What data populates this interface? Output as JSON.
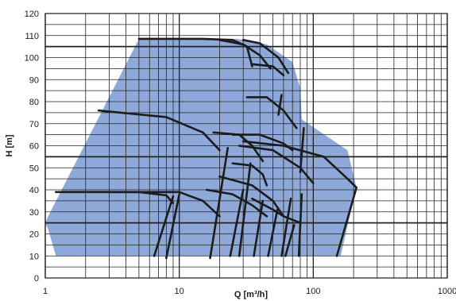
{
  "chart_data": {
    "type": "area",
    "xlabel": "Q [m³/h]",
    "ylabel": "H [m]",
    "x_scale": "log",
    "xlim": [
      1,
      1000
    ],
    "ylim": [
      0,
      120
    ],
    "x_ticks": [
      "1",
      "10",
      "100",
      "1000"
    ],
    "y_ticks": [
      "0",
      "10",
      "20",
      "30",
      "40",
      "50",
      "60",
      "70",
      "80",
      "90",
      "100",
      "110",
      "120"
    ],
    "grid": true,
    "emphasized_y_lines": [
      25,
      55,
      105
    ],
    "colors": {
      "envelope": "#8ea9d9",
      "curves": "#1c1c1c",
      "grid": "#222222"
    },
    "envelope": [
      [
        1,
        25
      ],
      [
        1.05,
        28
      ],
      [
        5,
        108.5
      ],
      [
        27,
        108.5
      ],
      [
        45,
        106
      ],
      [
        70,
        98
      ],
      [
        80,
        86
      ],
      [
        82,
        72
      ],
      [
        180,
        58
      ],
      [
        210,
        41
      ],
      [
        160,
        10
      ],
      [
        1.2,
        10
      ],
      [
        1.05,
        22
      ]
    ],
    "curves": [
      {
        "points": [
          [
            5,
            108.5
          ],
          [
            15,
            108.5
          ],
          [
            25,
            108
          ],
          [
            32,
            105
          ],
          [
            35,
            96
          ]
        ]
      },
      {
        "points": [
          [
            30,
            108
          ],
          [
            40,
            106.5
          ],
          [
            55,
            100
          ],
          [
            65,
            93
          ]
        ]
      },
      {
        "points": [
          [
            20,
            108
          ],
          [
            30,
            106
          ],
          [
            40,
            101
          ],
          [
            48,
            95
          ]
        ]
      },
      {
        "points": [
          [
            32,
            82
          ],
          [
            45,
            82
          ],
          [
            60,
            76
          ],
          [
            75,
            68
          ]
        ]
      },
      {
        "points": [
          [
            35,
            97
          ],
          [
            50,
            96
          ],
          [
            60,
            92
          ]
        ]
      },
      {
        "points": [
          [
            2.5,
            76
          ],
          [
            8,
            73
          ],
          [
            15,
            66
          ],
          [
            20,
            58
          ]
        ]
      },
      {
        "points": [
          [
            18,
            66
          ],
          [
            28,
            65
          ],
          [
            35,
            60
          ],
          [
            42,
            53
          ]
        ]
      },
      {
        "points": [
          [
            25,
            65
          ],
          [
            40,
            65
          ],
          [
            60,
            61
          ],
          [
            70,
            58
          ]
        ]
      },
      {
        "points": [
          [
            30,
            62
          ],
          [
            60,
            60
          ],
          [
            120,
            55
          ],
          [
            180,
            45
          ],
          [
            210,
            41
          ]
        ]
      },
      {
        "points": [
          [
            28,
            60
          ],
          [
            50,
            58
          ],
          [
            80,
            50
          ],
          [
            100,
            43
          ]
        ]
      },
      {
        "points": [
          [
            1.2,
            39
          ],
          [
            5,
            39
          ],
          [
            8,
            37.5
          ],
          [
            9,
            34
          ]
        ]
      },
      {
        "points": [
          [
            3,
            39
          ],
          [
            10,
            39
          ],
          [
            15,
            35
          ],
          [
            20,
            28
          ]
        ]
      },
      {
        "points": [
          [
            16,
            40
          ],
          [
            25,
            38
          ],
          [
            35,
            33
          ],
          [
            45,
            28
          ]
        ]
      },
      {
        "points": [
          [
            20,
            46
          ],
          [
            35,
            42
          ],
          [
            50,
            35
          ],
          [
            60,
            28
          ]
        ]
      },
      {
        "points": [
          [
            35,
            36
          ],
          [
            50,
            31
          ],
          [
            60,
            28
          ],
          [
            80,
            25
          ]
        ]
      },
      {
        "points": [
          [
            25,
            52
          ],
          [
            35,
            51
          ],
          [
            42,
            47
          ],
          [
            45,
            42
          ]
        ]
      },
      {
        "points": [
          [
            6.5,
            10
          ],
          [
            9,
            37
          ]
        ]
      },
      {
        "points": [
          [
            8,
            9
          ],
          [
            10,
            38
          ]
        ]
      },
      {
        "points": [
          [
            17,
            9
          ],
          [
            23,
            59
          ]
        ]
      },
      {
        "points": [
          [
            24,
            10
          ],
          [
            30,
            40
          ]
        ]
      },
      {
        "points": [
          [
            28,
            10
          ],
          [
            34,
            52
          ]
        ]
      },
      {
        "points": [
          [
            36,
            10
          ],
          [
            42,
            35
          ]
        ]
      },
      {
        "points": [
          [
            46,
            10
          ],
          [
            54,
            31
          ]
        ]
      },
      {
        "points": [
          [
            58,
            10
          ],
          [
            68,
            36
          ]
        ]
      },
      {
        "points": [
          [
            62,
            10
          ],
          [
            72,
            24
          ]
        ]
      },
      {
        "points": [
          [
            78,
            10
          ],
          [
            82,
            38
          ]
        ]
      },
      {
        "points": [
          [
            150,
            10
          ],
          [
            210,
            41
          ]
        ]
      },
      {
        "points": [
          [
            55,
            74
          ],
          [
            58,
            83
          ]
        ]
      },
      {
        "points": [
          [
            80,
            48
          ],
          [
            85,
            68
          ]
        ]
      }
    ]
  }
}
